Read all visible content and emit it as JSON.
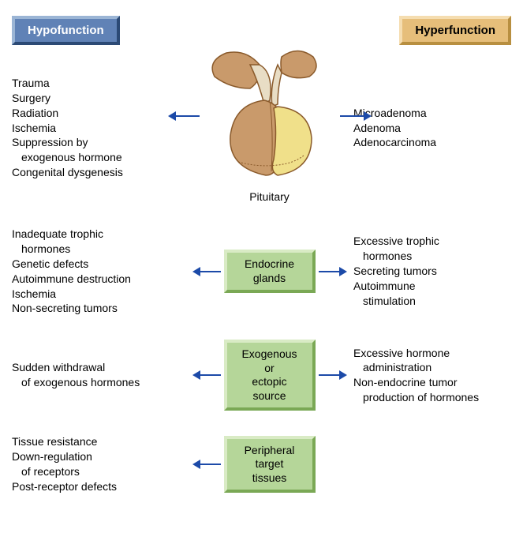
{
  "colors": {
    "arrow": "#1c4aa8",
    "blue_box_bg": "#6082b6",
    "blue_box_light": "#9bb5d5",
    "blue_box_dark": "#2c4a75",
    "tan_box_bg": "#e6be7a",
    "tan_box_light": "#f5ddb0",
    "tan_box_dark": "#b88f40",
    "green_box_bg": "#b5d699",
    "green_box_light": "#d9ebc5",
    "green_box_dark": "#7aa855",
    "text": "#000000",
    "pituitary_outline": "#8a5a2b",
    "pituitary_anterior": "#c99a6b",
    "pituitary_posterior": "#f0e08a",
    "pituitary_stalk": "#f5f2e0"
  },
  "typography": {
    "base_fontsize": 14,
    "header_fontsize": 15,
    "font_family": "Arial"
  },
  "header": {
    "hypo_label": "Hypofunction",
    "hyper_label": "Hyperfunction"
  },
  "type": "flowchart",
  "rows": [
    {
      "center": {
        "kind": "illustration",
        "label": "Pituitary"
      },
      "left_lines": [
        "Trauma",
        "Surgery",
        "Radiation",
        "Ischemia",
        "Suppression by",
        "  exogenous hormone",
        "Congenital dysgenesis"
      ],
      "right_lines": [
        "Microadenoma",
        "Adenoma",
        "Adenocarcinoma"
      ],
      "arrows": {
        "left": true,
        "right": true
      }
    },
    {
      "center": {
        "kind": "box",
        "label_line1": "Endocrine",
        "label_line2": "glands"
      },
      "left_lines": [
        "Inadequate trophic",
        "  hormones",
        "Genetic defects",
        "Autoimmune destruction",
        "Ischemia",
        "Non-secreting tumors"
      ],
      "right_lines": [
        "Excessive trophic",
        "  hormones",
        "Secreting tumors",
        "Autoimmune",
        "  stimulation"
      ],
      "arrows": {
        "left": true,
        "right": true
      }
    },
    {
      "center": {
        "kind": "box",
        "label_line1": "Exogenous or",
        "label_line2": "ectopic source"
      },
      "left_lines": [
        "Sudden withdrawal",
        "  of exogenous hormones"
      ],
      "right_lines": [
        "Excessive hormone",
        "  administration",
        "Non-endocrine tumor",
        "  production of hormones"
      ],
      "arrows": {
        "left": true,
        "right": true
      }
    },
    {
      "center": {
        "kind": "box",
        "label_line1": "Peripheral",
        "label_line2": "target tissues"
      },
      "left_lines": [
        "Tissue resistance",
        "Down-regulation",
        "  of receptors",
        "Post-receptor defects"
      ],
      "right_lines": [],
      "arrows": {
        "left": true,
        "right": false
      }
    }
  ]
}
